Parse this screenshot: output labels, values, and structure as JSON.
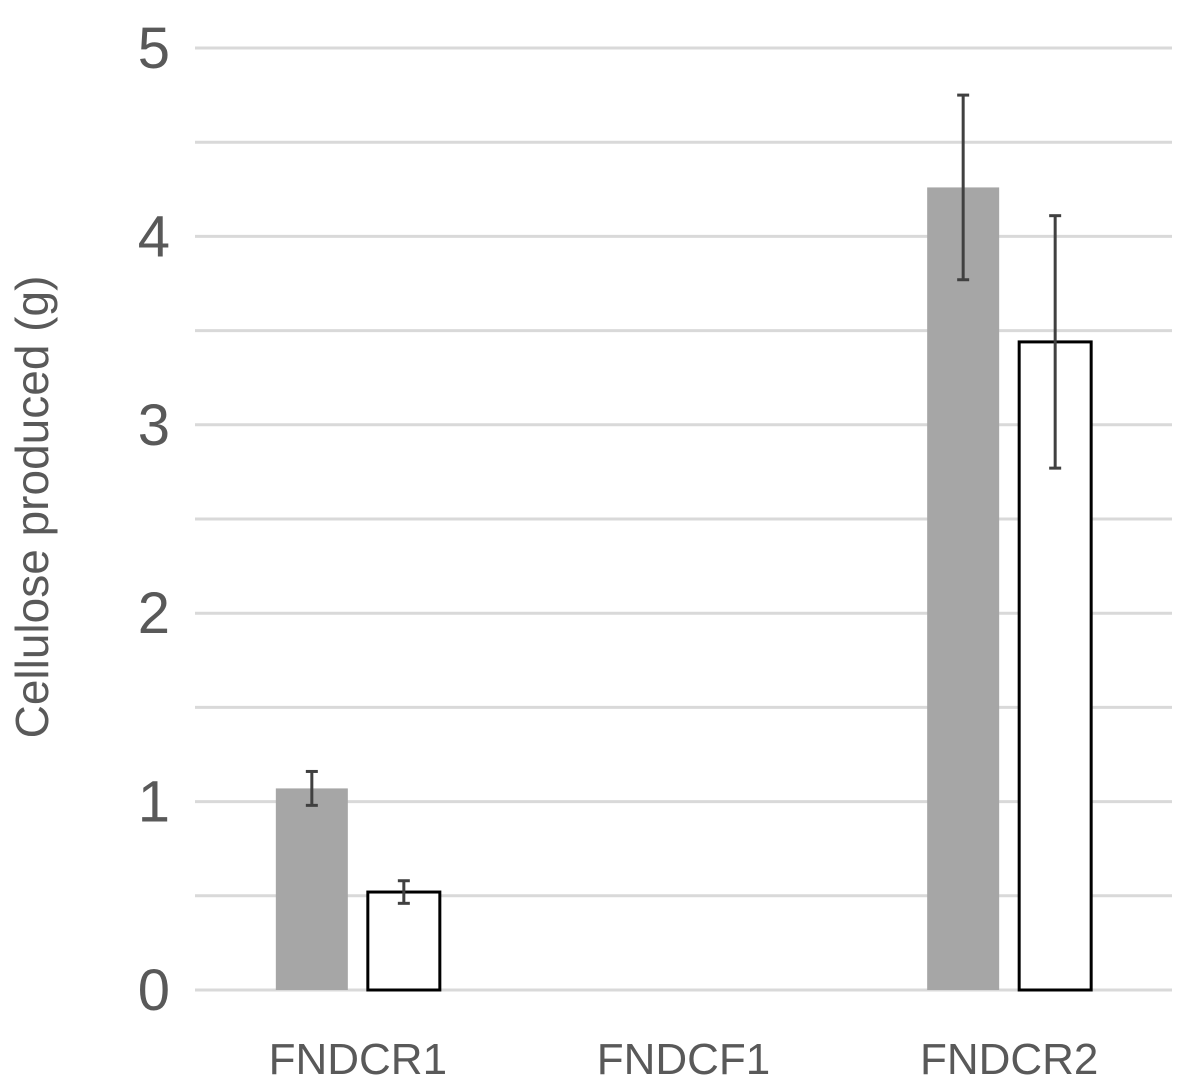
{
  "chart_data": {
    "type": "bar",
    "title": "",
    "xlabel": "",
    "ylabel": "Cellulose produced (g)",
    "ylim": [
      0,
      5
    ],
    "y_ticks": [
      "0",
      "1",
      "2",
      "3",
      "4",
      "5"
    ],
    "minor_gridlines": [
      0.5,
      1.5,
      2.5,
      3.5,
      4.5
    ],
    "grid": true,
    "legend": "none",
    "categories": [
      "FNDCR1",
      "FNDCF1",
      "FNDCR2"
    ],
    "series": [
      {
        "fill": "#a6a6a6",
        "stroke": "none",
        "values": [
          1.07,
          0.0,
          4.26
        ],
        "errors": [
          0.09,
          0.0,
          0.49
        ]
      },
      {
        "fill": "#ffffff",
        "stroke": "#000000",
        "values": [
          0.52,
          0.0,
          3.44
        ],
        "errors": [
          0.06,
          0.0,
          0.67
        ]
      }
    ]
  }
}
